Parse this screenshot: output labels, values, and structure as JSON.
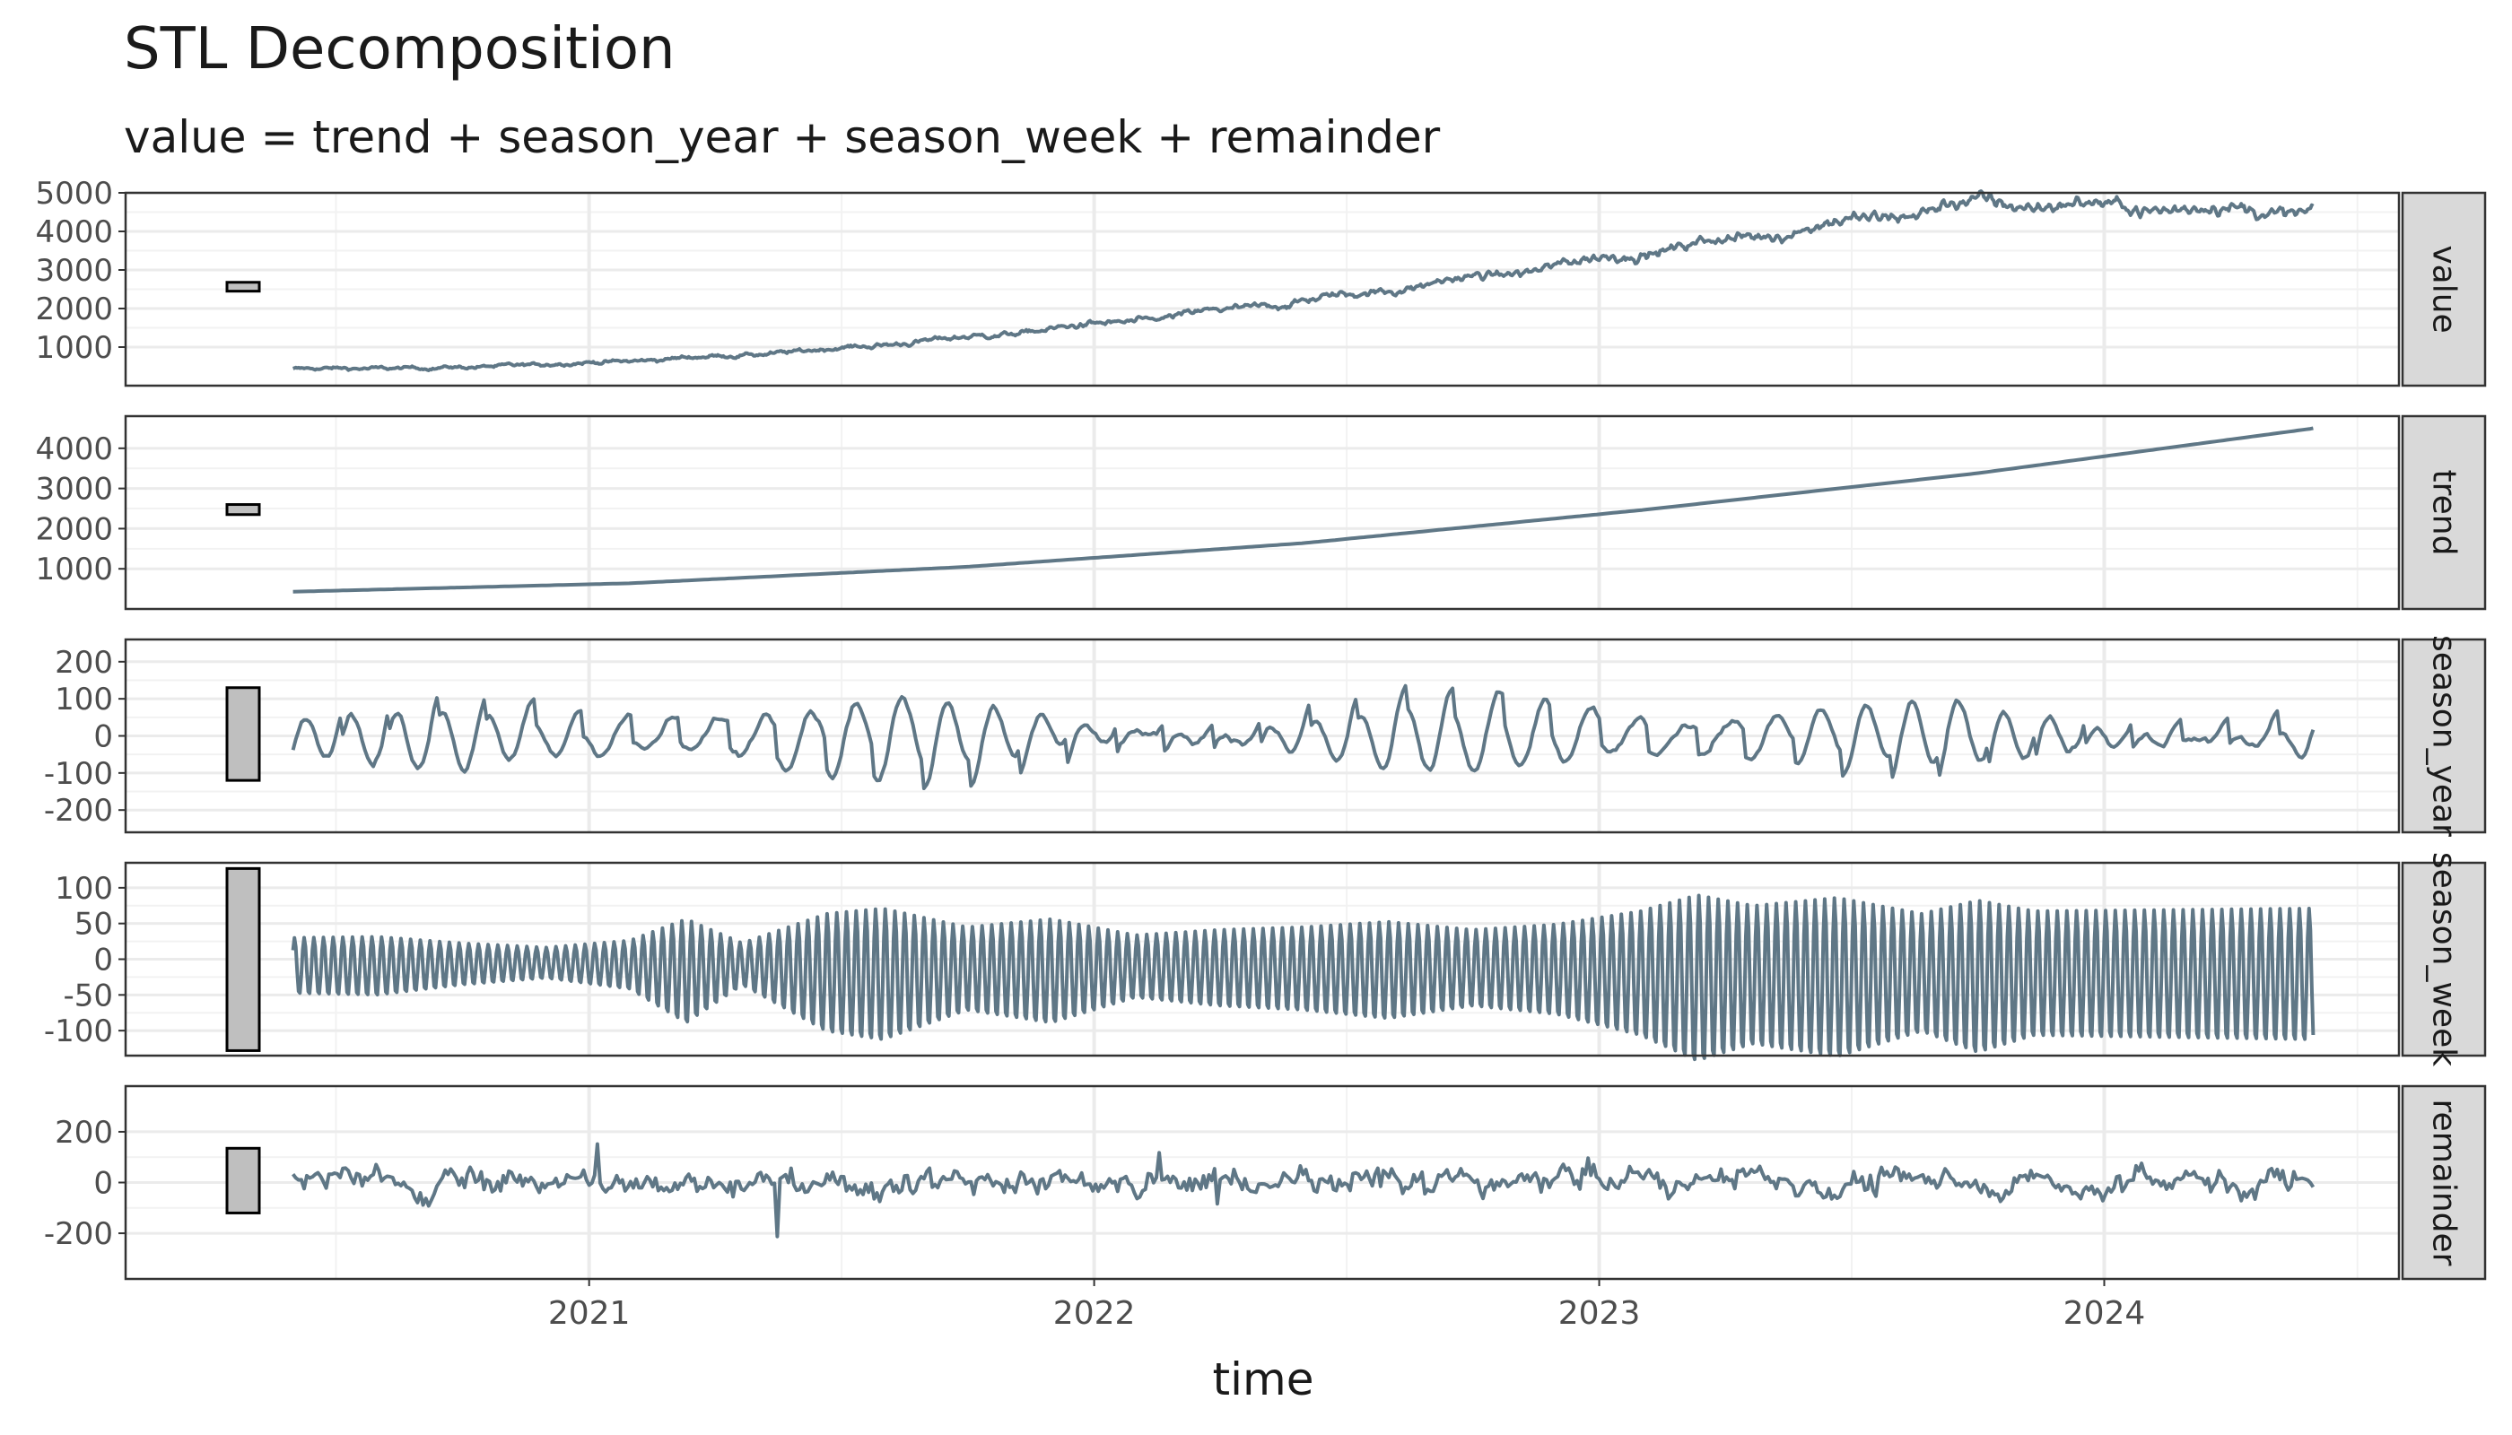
{
  "chart_data": {
    "type": "line",
    "title": "STL Decomposition",
    "subtitle": "value = trend + season_year + season_week + remainder",
    "xlabel": "time",
    "x_range": [
      "2020-02-01",
      "2024-08-01"
    ],
    "x_ticks": [
      {
        "date": "2021-01-01",
        "label": "2021"
      },
      {
        "date": "2022-01-01",
        "label": "2022"
      },
      {
        "date": "2023-01-01",
        "label": "2023"
      },
      {
        "date": "2024-01-01",
        "label": "2024"
      }
    ],
    "date_start": "2020-06-01",
    "date_end": "2024-05-31",
    "series_color": "#5f7786",
    "scale_bar_fill": "#bfbfbf",
    "strip_fill": "#d9d9d9",
    "grid": true,
    "panels": [
      {
        "name": "value",
        "strip": "value",
        "ylim": [
          0,
          5000
        ],
        "y_ticks": [
          "1000",
          "2000",
          "3000",
          "4000",
          "5000"
        ],
        "y_tick_values": [
          1000,
          2000,
          3000,
          4000,
          5000
        ],
        "scale_bar": [
          2450,
          2680
        ],
        "keypoints": [
          [
            0,
            430
          ],
          [
            6,
            470
          ],
          [
            12,
            640
          ],
          [
            18,
            880
          ],
          [
            24,
            1250
          ],
          [
            30,
            1680
          ],
          [
            36,
            2200
          ],
          [
            42,
            2780
          ],
          [
            48,
            3450
          ],
          [
            54,
            4100
          ],
          [
            60,
            4750
          ],
          [
            72,
            4500
          ]
        ],
        "noise_amplitude": 60
      },
      {
        "name": "trend",
        "strip": "trend",
        "ylim": [
          0,
          4800
        ],
        "y_ticks": [
          "1000",
          "2000",
          "3000",
          "4000"
        ],
        "y_tick_values": [
          1000,
          2000,
          3000,
          4000
        ],
        "scale_bar": [
          2350,
          2600
        ],
        "keypoints": [
          [
            0,
            430
          ],
          [
            12,
            640
          ],
          [
            24,
            1050
          ],
          [
            36,
            1640
          ],
          [
            48,
            2460
          ],
          [
            60,
            3380
          ],
          [
            72,
            4500
          ]
        ]
      },
      {
        "name": "season_year",
        "strip": "season_year",
        "ylim": [
          -260,
          260
        ],
        "y_ticks": [
          "-200",
          "-100",
          "0",
          "100",
          "200"
        ],
        "y_tick_values": [
          -200,
          -100,
          0,
          100,
          200
        ],
        "scale_bar": [
          -120,
          130
        ],
        "amplitude": 140
      },
      {
        "name": "season_week",
        "strip": "season_week",
        "ylim": [
          -135,
          135
        ],
        "y_ticks": [
          "-100",
          "-50",
          "0",
          "50",
          "100"
        ],
        "y_tick_values": [
          -100,
          -50,
          0,
          50,
          100
        ],
        "scale_bar": [
          -128,
          127
        ],
        "envelope": [
          [
            0,
            40
          ],
          [
            3,
            42
          ],
          [
            6,
            30
          ],
          [
            9,
            22
          ],
          [
            12,
            35
          ],
          [
            14,
            75
          ],
          [
            16,
            30
          ],
          [
            19,
            85
          ],
          [
            21,
            95
          ],
          [
            24,
            60
          ],
          [
            27,
            75
          ],
          [
            30,
            45
          ],
          [
            33,
            55
          ],
          [
            36,
            60
          ],
          [
            39,
            70
          ],
          [
            42,
            55
          ],
          [
            45,
            65
          ],
          [
            48,
            90
          ],
          [
            50,
            120
          ],
          [
            52,
            100
          ],
          [
            55,
            115
          ],
          [
            58,
            85
          ],
          [
            60,
            110
          ],
          [
            62,
            90
          ],
          [
            72,
            95
          ]
        ]
      },
      {
        "name": "remainder",
        "strip": "remainder",
        "ylim": [
          -380,
          380
        ],
        "y_ticks": [
          "-200",
          "0",
          "200"
        ],
        "y_tick_values": [
          -200,
          0,
          200
        ],
        "scale_bar": [
          -120,
          135
        ],
        "amplitude": 70
      }
    ]
  }
}
